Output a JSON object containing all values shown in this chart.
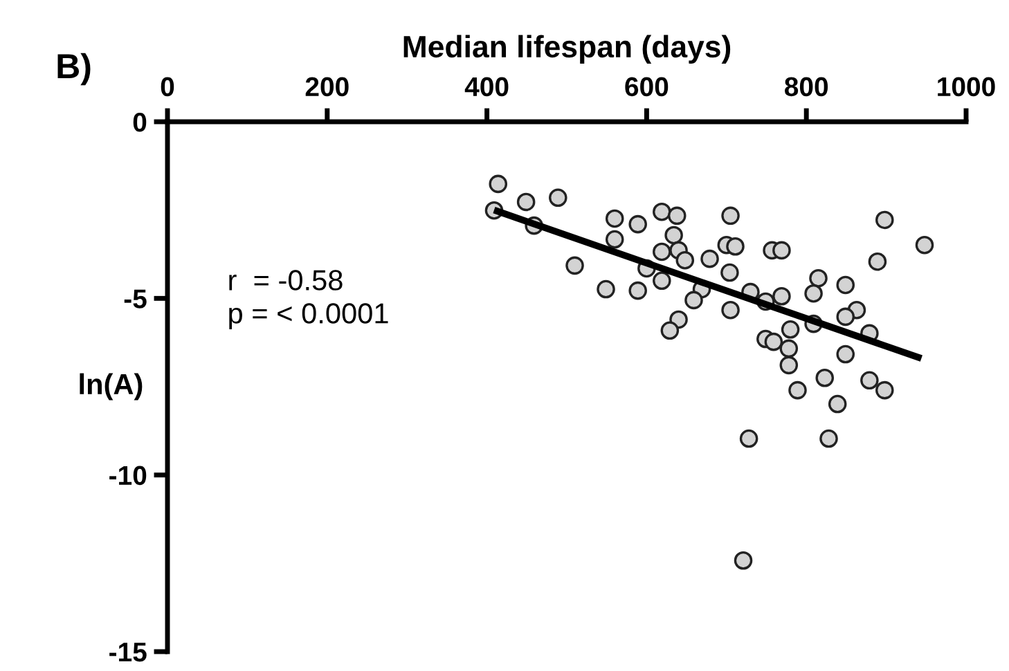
{
  "chart_data": {
    "type": "scatter",
    "title": "B)",
    "xlabel": "Median lifespan (days)",
    "ylabel": "ln(A)",
    "annotations": [
      "r  = -0.58\np = < 0.0001"
    ],
    "xlim": [
      0,
      1000
    ],
    "xticks": [
      0,
      200,
      400,
      600,
      800,
      1000
    ],
    "ylim": [
      -15,
      0
    ],
    "yticks": [
      -15,
      -10,
      -5,
      0
    ],
    "grid": false,
    "legend": false,
    "series": [
      {
        "marker": "circle",
        "color": "#d3d3d3",
        "x": [
          414,
          409,
          449,
          489,
          459,
          510,
          560,
          560,
          589,
          619,
          638,
          634,
          619,
          640,
          648,
          600,
          619,
          549,
          589,
          679,
          669,
          659,
          640,
          629,
          705,
          700,
          711,
          704,
          705,
          730,
          749,
          769,
          757,
          769,
          815,
          809,
          849,
          898,
          948,
          889,
          863,
          849,
          809,
          879,
          780,
          749,
          759,
          778,
          778,
          849,
          823,
          789,
          879,
          898,
          839,
          828,
          728,
          721
        ],
        "values": [
          -1.76,
          -2.51,
          -2.27,
          -2.15,
          -2.94,
          -4.07,
          -2.74,
          -3.33,
          -2.9,
          -2.55,
          -2.66,
          -3.21,
          -3.68,
          -3.64,
          -3.92,
          -4.15,
          -4.5,
          -4.74,
          -4.78,
          -3.88,
          -4.74,
          -5.05,
          -5.6,
          -5.91,
          -2.66,
          -3.49,
          -3.53,
          -4.27,
          -5.33,
          -4.82,
          -5.09,
          -4.94,
          -3.64,
          -3.64,
          -4.43,
          -4.86,
          -4.62,
          -2.78,
          -3.49,
          -3.96,
          -5.33,
          -5.52,
          -5.72,
          -5.99,
          -5.88,
          -6.15,
          -6.23,
          -6.42,
          -6.89,
          -6.58,
          -7.25,
          -7.6,
          -7.32,
          -7.6,
          -7.99,
          -8.97,
          -8.97,
          -12.42
        ]
      },
      {
        "type": "line",
        "marker": "none",
        "color": "#000000",
        "x": [
          409,
          944
        ],
        "values": [
          -2.5,
          -6.7
        ]
      }
    ]
  }
}
